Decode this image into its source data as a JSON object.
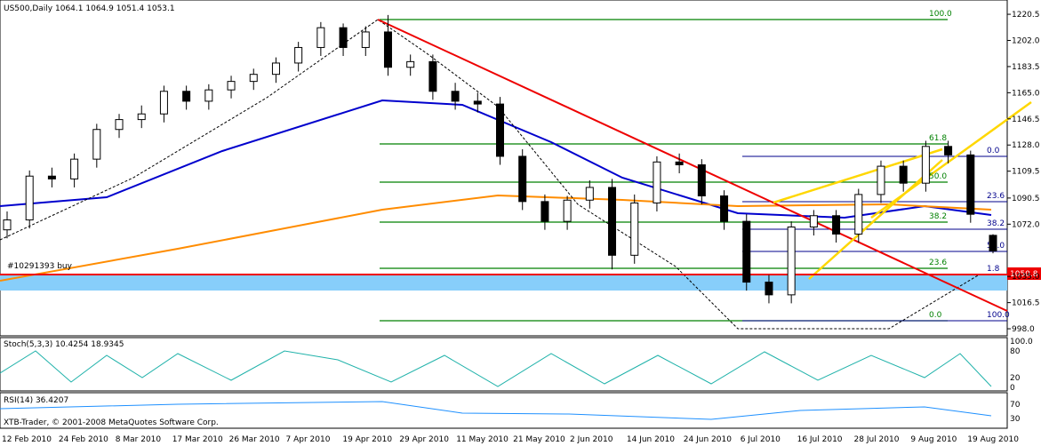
{
  "chart_data": {
    "type": "candlestick",
    "title": "US500,Daily",
    "position_label": "#10291393 buy",
    "price_label": "1050.8",
    "categories": [
      null,
      null,
      null,
      null,
      null,
      null,
      null,
      null,
      null,
      null,
      null,
      null,
      null,
      null,
      null,
      null,
      null,
      null,
      null,
      null,
      null,
      null,
      null,
      null,
      null,
      null,
      null,
      null,
      null,
      null,
      null,
      null,
      null,
      null,
      null,
      null,
      null,
      null,
      null,
      null,
      null,
      null,
      null,
      null,
      null
    ],
    "open": [
      1068,
      1075,
      1106,
      1104,
      1118,
      1139,
      1146,
      1150,
      1166,
      1159,
      1167,
      1173,
      1178,
      1186,
      1197,
      1211,
      1197,
      1208,
      1183,
      1187,
      1166,
      1159,
      1157,
      1120,
      1088,
      1074,
      1089,
      1098,
      1050,
      1087,
      1116,
      1114,
      1092,
      1074,
      1031,
      1022,
      1070,
      1078,
      1065,
      1093,
      1113,
      1101,
      1127,
      1121,
      1064.1
    ],
    "high": [
      1081,
      1110,
      1112,
      1122,
      1143,
      1150,
      1156,
      1170,
      1170,
      1171,
      1177,
      1182,
      1190,
      1201,
      1215,
      1214,
      1212,
      1220,
      1192,
      1192,
      1172,
      1165,
      1162,
      1125,
      1093,
      1092,
      1103,
      1104,
      1093,
      1120,
      1122,
      1118,
      1096,
      1079,
      1036,
      1074,
      1082,
      1082,
      1097,
      1117,
      1117,
      1131,
      1131,
      1124,
      1064.9
    ],
    "low": [
      1062,
      1069,
      1098,
      1098,
      1112,
      1133,
      1140,
      1144,
      1153,
      1153,
      1161,
      1167,
      1172,
      1180,
      1191,
      1191,
      1191,
      1177,
      1177,
      1160,
      1153,
      1151,
      1114,
      1082,
      1068,
      1068,
      1083,
      1040,
      1044,
      1081,
      1108,
      1086,
      1068,
      1025,
      1016,
      1016,
      1064,
      1059,
      1059,
      1087,
      1095,
      1095,
      1115,
      1073,
      1051.4
    ],
    "close": [
      1075,
      1106,
      1104,
      1118,
      1139,
      1146,
      1150,
      1166,
      1159,
      1167,
      1173,
      1178,
      1186,
      1197,
      1211,
      1197,
      1208,
      1183,
      1187,
      1166,
      1159,
      1157,
      1120,
      1088,
      1074,
      1089,
      1098,
      1050,
      1087,
      1116,
      1114,
      1092,
      1074,
      1031,
      1022,
      1070,
      1078,
      1065,
      1093,
      1113,
      1101,
      1127,
      1121,
      1079,
      1053.1
    ],
    "ylim": [
      993,
      1230.6
    ],
    "yticks": [
      1220.5,
      {
        "value": 1202,
        "label": "1202.0"
      },
      1183.5,
      {
        "value": 1165,
        "label": "1165.0"
      },
      1146.5,
      {
        "value": 1128,
        "label": "1128.0"
      },
      1109.5,
      1090.5,
      {
        "value": 1072,
        "label": "1072.0"
      },
      {
        "value": 1035,
        "label": "1035.0"
      },
      1016.5,
      {
        "value": 998,
        "label": "998.0"
      }
    ],
    "dates": [
      "12 Feb 2010",
      "24 Feb 2010",
      "8 Mar 2010",
      "17 Mar 2010",
      "26 Mar 2010",
      "7 Apr 2010",
      "19 Apr 2010",
      "29 Apr 2010",
      "11 May 2010",
      "21 May 2010",
      "2 Jun 2010",
      "14 Jun 2010",
      "24 Jun 2010",
      "6 Jul 2010",
      "16 Jul 2010",
      "28 Jul 2010",
      "9 Aug 2010",
      "19 Aug 2010"
    ],
    "fib_green": [
      "100.0",
      "61.8",
      "50.0",
      "38.2",
      "23.6",
      "0.0"
    ],
    "fib_blue": [
      "0.0",
      "23.6",
      "38.2",
      "50.0",
      "1.8",
      "100.0"
    ],
    "stoch": {
      "title": "Stoch(5,3,3) 10.4254 18.9345",
      "ticks": [
        "100.0",
        "80",
        "20",
        "0"
      ]
    },
    "rsi": {
      "title": "RSI(14) 36.4207",
      "ticks": [
        "70",
        "30"
      ]
    },
    "footer": "XTB-Trader, © 2001-2008 MetaQuotes Software Corp."
  }
}
